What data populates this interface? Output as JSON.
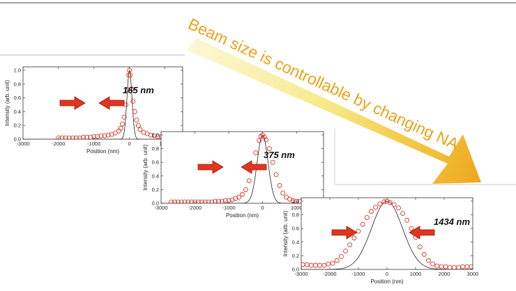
{
  "banner": {
    "text": "Beam size is controllable by changing NA"
  },
  "chart_data": [
    {
      "type": "scatter",
      "fwhm_label": "165 nm",
      "xlabel": "Position (nm)",
      "ylabel": "Intensity (arb. unit)",
      "xlim": [
        -3000,
        1500
      ],
      "ylim": [
        0,
        1.05
      ],
      "xticks": [
        -3000,
        -2000,
        -1000,
        0,
        1000
      ],
      "yticks": [
        0.0,
        0.2,
        0.4,
        0.6,
        0.8,
        1.0
      ],
      "fwhm_nm": 165,
      "fit_sigma_nm": 70,
      "points": [
        [
          -2000,
          0.02
        ],
        [
          -1900,
          0.02
        ],
        [
          -1800,
          0.02
        ],
        [
          -1700,
          0.02
        ],
        [
          -1600,
          0.02
        ],
        [
          -1500,
          0.02
        ],
        [
          -1400,
          0.02
        ],
        [
          -1300,
          0.03
        ],
        [
          -1200,
          0.03
        ],
        [
          -1100,
          0.03
        ],
        [
          -1000,
          0.04
        ],
        [
          -900,
          0.04
        ],
        [
          -800,
          0.05
        ],
        [
          -700,
          0.05
        ],
        [
          -600,
          0.06
        ],
        [
          -500,
          0.07
        ],
        [
          -400,
          0.09
        ],
        [
          -300,
          0.12
        ],
        [
          -250,
          0.16
        ],
        [
          -200,
          0.22
        ],
        [
          -150,
          0.32
        ],
        [
          -100,
          0.5
        ],
        [
          -60,
          0.72
        ],
        [
          -20,
          0.93
        ],
        [
          0,
          1.0
        ],
        [
          20,
          0.93
        ],
        [
          60,
          0.73
        ],
        [
          100,
          0.55
        ],
        [
          150,
          0.4
        ],
        [
          200,
          0.28
        ],
        [
          250,
          0.2
        ],
        [
          300,
          0.14
        ],
        [
          400,
          0.1
        ],
        [
          500,
          0.08
        ],
        [
          600,
          0.06
        ],
        [
          700,
          0.05
        ],
        [
          800,
          0.04
        ],
        [
          900,
          0.04
        ],
        [
          1000,
          0.03
        ],
        [
          1100,
          0.03
        ],
        [
          1200,
          0.02
        ],
        [
          1300,
          0.02
        ]
      ]
    },
    {
      "type": "scatter",
      "fwhm_label": "375 nm",
      "xlabel": "Position (nm)",
      "ylabel": "Intensity (arb. unit)",
      "xlim": [
        -3000,
        1800
      ],
      "ylim": [
        0,
        1.05
      ],
      "xticks": [
        -3000,
        -2000,
        -1000,
        0,
        1000
      ],
      "yticks": [
        0.0,
        0.2,
        0.4,
        0.6,
        0.8,
        1.0
      ],
      "fwhm_nm": 375,
      "fit_sigma_nm": 160,
      "points": [
        [
          -2700,
          0.02
        ],
        [
          -2600,
          0.02
        ],
        [
          -2500,
          0.02
        ],
        [
          -2400,
          0.02
        ],
        [
          -2300,
          0.02
        ],
        [
          -2200,
          0.02
        ],
        [
          -2100,
          0.02
        ],
        [
          -2000,
          0.02
        ],
        [
          -1900,
          0.02
        ],
        [
          -1800,
          0.02
        ],
        [
          -1700,
          0.02
        ],
        [
          -1600,
          0.02
        ],
        [
          -1500,
          0.02
        ],
        [
          -1400,
          0.03
        ],
        [
          -1300,
          0.03
        ],
        [
          -1200,
          0.03
        ],
        [
          -1100,
          0.04
        ],
        [
          -1000,
          0.04
        ],
        [
          -900,
          0.05
        ],
        [
          -800,
          0.07
        ],
        [
          -700,
          0.09
        ],
        [
          -600,
          0.13
        ],
        [
          -500,
          0.2
        ],
        [
          -400,
          0.33
        ],
        [
          -300,
          0.52
        ],
        [
          -200,
          0.74
        ],
        [
          -100,
          0.92
        ],
        [
          -50,
          0.98
        ],
        [
          0,
          1.0
        ],
        [
          50,
          0.97
        ],
        [
          100,
          0.93
        ],
        [
          200,
          0.8
        ],
        [
          300,
          0.6
        ],
        [
          400,
          0.42
        ],
        [
          500,
          0.26
        ],
        [
          600,
          0.15
        ],
        [
          700,
          0.09
        ],
        [
          800,
          0.06
        ],
        [
          900,
          0.04
        ],
        [
          1000,
          0.03
        ],
        [
          1100,
          0.03
        ],
        [
          1200,
          0.02
        ],
        [
          1300,
          0.02
        ],
        [
          1400,
          0.02
        ],
        [
          1500,
          0.02
        ],
        [
          1600,
          0.02
        ],
        [
          1700,
          0.02
        ]
      ]
    },
    {
      "type": "scatter",
      "fwhm_label": "1434 nm",
      "xlabel": "Position (nm)",
      "ylabel": "Intensity (arb. unit)",
      "xlim": [
        -3000,
        3000
      ],
      "ylim": [
        0,
        1.05
      ],
      "xticks": [
        -3000,
        -2000,
        -1000,
        0,
        1000,
        2000,
        3000
      ],
      "yticks": [
        0.0,
        0.2,
        0.4,
        0.6,
        0.8,
        1.0
      ],
      "fwhm_nm": 1434,
      "fit_sigma_nm": 540,
      "points": [
        [
          -2950,
          0.07
        ],
        [
          -2800,
          0.07
        ],
        [
          -2650,
          0.06
        ],
        [
          -2500,
          0.06
        ],
        [
          -2350,
          0.06
        ],
        [
          -2200,
          0.06
        ],
        [
          -2050,
          0.08
        ],
        [
          -1900,
          0.09
        ],
        [
          -1750,
          0.13
        ],
        [
          -1600,
          0.19
        ],
        [
          -1450,
          0.27
        ],
        [
          -1300,
          0.36
        ],
        [
          -1150,
          0.46
        ],
        [
          -1000,
          0.56
        ],
        [
          -850,
          0.66
        ],
        [
          -700,
          0.76
        ],
        [
          -550,
          0.85
        ],
        [
          -400,
          0.91
        ],
        [
          -250,
          0.96
        ],
        [
          -100,
          0.99
        ],
        [
          0,
          1.0
        ],
        [
          100,
          0.98
        ],
        [
          250,
          0.95
        ],
        [
          400,
          0.9
        ],
        [
          550,
          0.82
        ],
        [
          700,
          0.72
        ],
        [
          850,
          0.6
        ],
        [
          1000,
          0.47
        ],
        [
          1150,
          0.33
        ],
        [
          1300,
          0.22
        ],
        [
          1450,
          0.13
        ],
        [
          1600,
          0.08
        ],
        [
          1750,
          0.05
        ],
        [
          1900,
          0.04
        ],
        [
          2050,
          0.04
        ],
        [
          2200,
          0.03
        ],
        [
          2350,
          0.03
        ],
        [
          2500,
          0.03
        ],
        [
          2650,
          0.04
        ],
        [
          2800,
          0.04
        ],
        [
          2950,
          0.04
        ]
      ]
    }
  ]
}
